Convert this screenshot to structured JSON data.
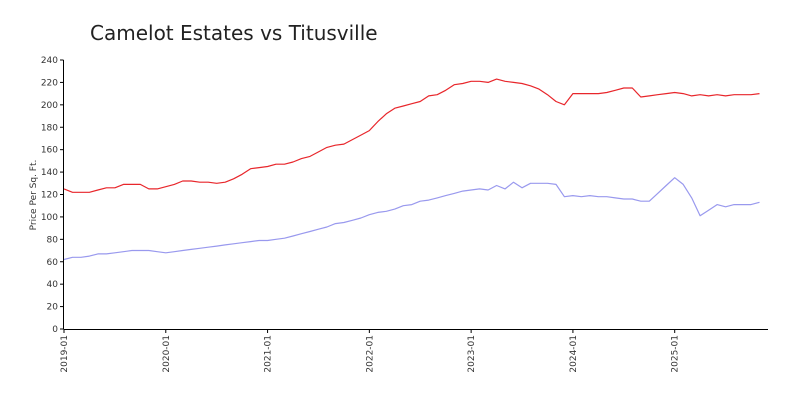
{
  "chart_data": {
    "type": "line",
    "title": "Camelot Estates vs Titusville",
    "xlabel": "",
    "ylabel": "Price Per Sq. Ft.",
    "ylim": [
      0,
      240
    ],
    "yticks": [
      0,
      20,
      40,
      60,
      80,
      100,
      120,
      140,
      160,
      180,
      200,
      220,
      240
    ],
    "xlim": [
      "2019-01",
      "2025-12"
    ],
    "xticks": [
      "2019-01",
      "2020-01",
      "2021-01",
      "2022-01",
      "2023-01",
      "2024-01",
      "2025-01"
    ],
    "grid": false,
    "legend": "none",
    "series": [
      {
        "color": "#e8262b",
        "points": [
          [
            "2019-01",
            125
          ],
          [
            "2019-02",
            122
          ],
          [
            "2019-03",
            122
          ],
          [
            "2019-04",
            122
          ],
          [
            "2019-05",
            124
          ],
          [
            "2019-06",
            126
          ],
          [
            "2019-07",
            126
          ],
          [
            "2019-08",
            129
          ],
          [
            "2019-09",
            129
          ],
          [
            "2019-10",
            129
          ],
          [
            "2019-11",
            125
          ],
          [
            "2019-12",
            125
          ],
          [
            "2020-01",
            127
          ],
          [
            "2020-02",
            129
          ],
          [
            "2020-03",
            132
          ],
          [
            "2020-04",
            132
          ],
          [
            "2020-05",
            131
          ],
          [
            "2020-06",
            131
          ],
          [
            "2020-07",
            130
          ],
          [
            "2020-08",
            131
          ],
          [
            "2020-09",
            134
          ],
          [
            "2020-10",
            138
          ],
          [
            "2020-11",
            143
          ],
          [
            "2020-12",
            144
          ],
          [
            "2021-01",
            145
          ],
          [
            "2021-02",
            147
          ],
          [
            "2021-03",
            147
          ],
          [
            "2021-04",
            149
          ],
          [
            "2021-05",
            152
          ],
          [
            "2021-06",
            154
          ],
          [
            "2021-07",
            158
          ],
          [
            "2021-08",
            162
          ],
          [
            "2021-09",
            164
          ],
          [
            "2021-10",
            165
          ],
          [
            "2021-11",
            169
          ],
          [
            "2021-12",
            173
          ],
          [
            "2022-01",
            177
          ],
          [
            "2022-02",
            185
          ],
          [
            "2022-03",
            192
          ],
          [
            "2022-04",
            197
          ],
          [
            "2022-05",
            199
          ],
          [
            "2022-06",
            201
          ],
          [
            "2022-07",
            203
          ],
          [
            "2022-08",
            208
          ],
          [
            "2022-09",
            209
          ],
          [
            "2022-10",
            213
          ],
          [
            "2022-11",
            218
          ],
          [
            "2022-12",
            219
          ],
          [
            "2023-01",
            221
          ],
          [
            "2023-02",
            221
          ],
          [
            "2023-03",
            220
          ],
          [
            "2023-04",
            223
          ],
          [
            "2023-05",
            221
          ],
          [
            "2023-06",
            220
          ],
          [
            "2023-07",
            219
          ],
          [
            "2023-08",
            217
          ],
          [
            "2023-09",
            214
          ],
          [
            "2023-10",
            209
          ],
          [
            "2023-11",
            203
          ],
          [
            "2023-12",
            200
          ],
          [
            "2024-01",
            210
          ],
          [
            "2024-02",
            210
          ],
          [
            "2024-03",
            210
          ],
          [
            "2024-04",
            210
          ],
          [
            "2024-05",
            211
          ],
          [
            "2024-06",
            213
          ],
          [
            "2024-07",
            215
          ],
          [
            "2024-08",
            215
          ],
          [
            "2024-09",
            207
          ],
          [
            "2024-10",
            208
          ],
          [
            "2024-11",
            209
          ],
          [
            "2024-12",
            210
          ],
          [
            "2025-01",
            211
          ],
          [
            "2025-02",
            210
          ],
          [
            "2025-03",
            208
          ],
          [
            "2025-04",
            209
          ],
          [
            "2025-05",
            208
          ],
          [
            "2025-06",
            209
          ],
          [
            "2025-07",
            208
          ],
          [
            "2025-08",
            209
          ],
          [
            "2025-09",
            209
          ],
          [
            "2025-10",
            209
          ],
          [
            "2025-11",
            210
          ]
        ]
      },
      {
        "color": "#9999ee",
        "points": [
          [
            "2019-01",
            62
          ],
          [
            "2019-02",
            64
          ],
          [
            "2019-03",
            64
          ],
          [
            "2019-04",
            65
          ],
          [
            "2019-05",
            67
          ],
          [
            "2019-06",
            67
          ],
          [
            "2019-07",
            68
          ],
          [
            "2019-08",
            69
          ],
          [
            "2019-09",
            70
          ],
          [
            "2019-10",
            70
          ],
          [
            "2019-11",
            70
          ],
          [
            "2019-12",
            69
          ],
          [
            "2020-01",
            68
          ],
          [
            "2020-02",
            69
          ],
          [
            "2020-03",
            70
          ],
          [
            "2020-04",
            71
          ],
          [
            "2020-05",
            72
          ],
          [
            "2020-06",
            73
          ],
          [
            "2020-07",
            74
          ],
          [
            "2020-08",
            75
          ],
          [
            "2020-09",
            76
          ],
          [
            "2020-10",
            77
          ],
          [
            "2020-11",
            78
          ],
          [
            "2020-12",
            79
          ],
          [
            "2021-01",
            79
          ],
          [
            "2021-02",
            80
          ],
          [
            "2021-03",
            81
          ],
          [
            "2021-04",
            83
          ],
          [
            "2021-05",
            85
          ],
          [
            "2021-06",
            87
          ],
          [
            "2021-07",
            89
          ],
          [
            "2021-08",
            91
          ],
          [
            "2021-09",
            94
          ],
          [
            "2021-10",
            95
          ],
          [
            "2021-11",
            97
          ],
          [
            "2021-12",
            99
          ],
          [
            "2022-01",
            102
          ],
          [
            "2022-02",
            104
          ],
          [
            "2022-03",
            105
          ],
          [
            "2022-04",
            107
          ],
          [
            "2022-05",
            110
          ],
          [
            "2022-06",
            111
          ],
          [
            "2022-07",
            114
          ],
          [
            "2022-08",
            115
          ],
          [
            "2022-09",
            117
          ],
          [
            "2022-10",
            119
          ],
          [
            "2022-11",
            121
          ],
          [
            "2022-12",
            123
          ],
          [
            "2023-01",
            124
          ],
          [
            "2023-02",
            125
          ],
          [
            "2023-03",
            124
          ],
          [
            "2023-04",
            128
          ],
          [
            "2023-05",
            125
          ],
          [
            "2023-06",
            131
          ],
          [
            "2023-07",
            126
          ],
          [
            "2023-08",
            130
          ],
          [
            "2023-09",
            130
          ],
          [
            "2023-10",
            130
          ],
          [
            "2023-11",
            129
          ],
          [
            "2023-12",
            118
          ],
          [
            "2024-01",
            119
          ],
          [
            "2024-02",
            118
          ],
          [
            "2024-03",
            119
          ],
          [
            "2024-04",
            118
          ],
          [
            "2024-05",
            118
          ],
          [
            "2024-06",
            117
          ],
          [
            "2024-07",
            116
          ],
          [
            "2024-08",
            116
          ],
          [
            "2024-09",
            114
          ],
          [
            "2024-10",
            114
          ],
          [
            "2024-11",
            121
          ],
          [
            "2024-12",
            128
          ],
          [
            "2025-01",
            135
          ],
          [
            "2025-02",
            129
          ],
          [
            "2025-03",
            117
          ],
          [
            "2025-04",
            101
          ],
          [
            "2025-05",
            106
          ],
          [
            "2025-06",
            111
          ],
          [
            "2025-07",
            109
          ],
          [
            "2025-08",
            111
          ],
          [
            "2025-09",
            111
          ],
          [
            "2025-10",
            111
          ],
          [
            "2025-11",
            113
          ]
        ]
      }
    ]
  }
}
